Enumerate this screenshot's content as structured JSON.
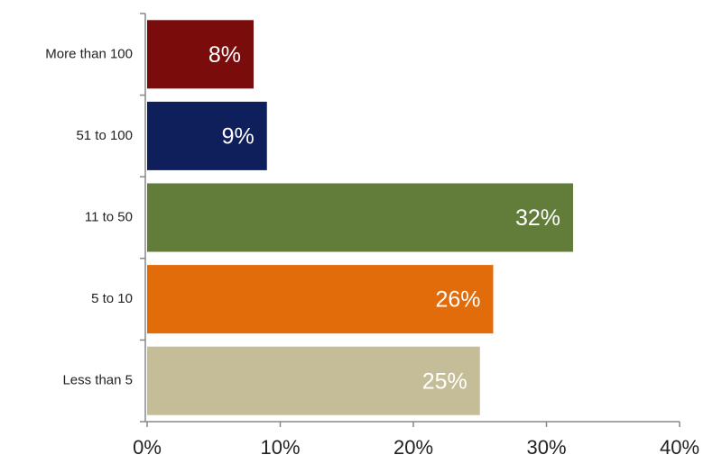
{
  "chart_data": {
    "type": "barh",
    "categories": [
      "More than 100",
      "51 to 100",
      "11 to 50",
      "5 to 10",
      "Less than 5"
    ],
    "values": [
      8,
      9,
      32,
      26,
      25
    ],
    "value_labels": [
      "8%",
      "9%",
      "32%",
      "26%",
      "25%"
    ],
    "colors": [
      "#7b0c0c",
      "#0f1f5c",
      "#627c3a",
      "#e36c0a",
      "#c4bd97"
    ],
    "xlim": [
      0,
      40
    ],
    "xticks": [
      {
        "value": 0,
        "label": "0%"
      },
      {
        "value": 10,
        "label": "10%"
      },
      {
        "value": 20,
        "label": "20%"
      },
      {
        "value": 30,
        "label": "30%"
      },
      {
        "value": 40,
        "label": "40%"
      }
    ],
    "grid": false
  }
}
